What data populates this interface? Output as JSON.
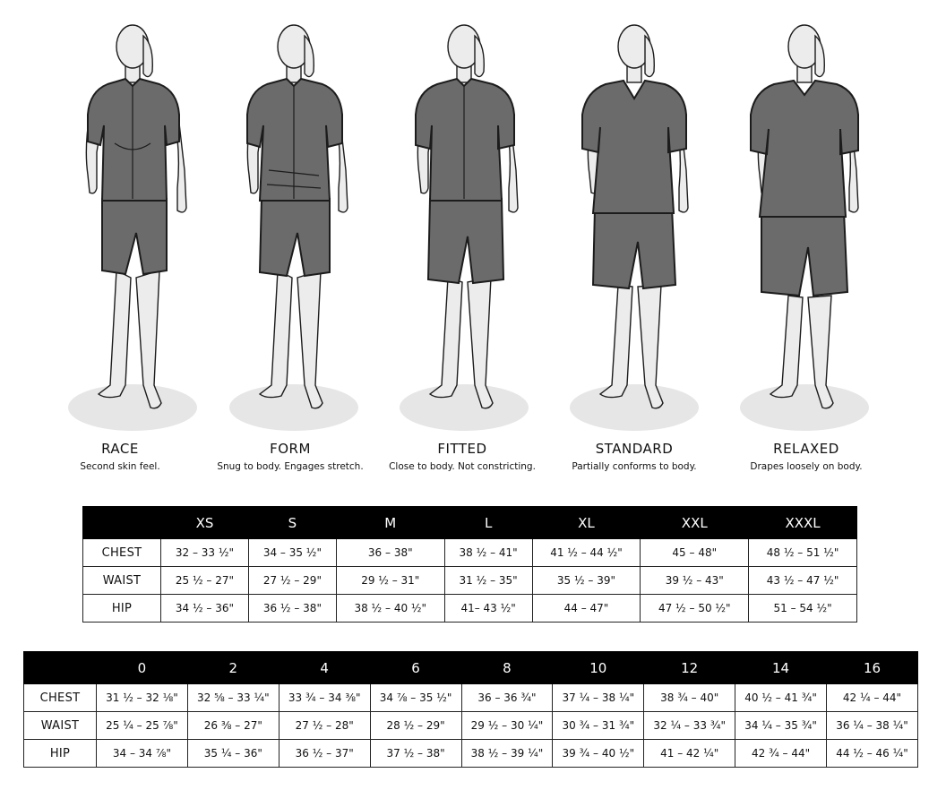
{
  "fits": [
    {
      "title": "RACE",
      "desc": "Second skin feel."
    },
    {
      "title": "FORM",
      "desc": "Snug to body. Engages stretch."
    },
    {
      "title": "FITTED",
      "desc": "Close to body. Not constricting."
    },
    {
      "title": "STANDARD",
      "desc": "Partially conforms to body."
    },
    {
      "title": "RELAXED",
      "desc": "Drapes loosely on body."
    }
  ],
  "colors": {
    "garment": "#6b6b6b",
    "body": "#ececec",
    "outline": "#1c1c1c",
    "shadow": "#e6e6e6",
    "header_bg": "#000000"
  },
  "alpha_table": {
    "headers": [
      "",
      "XS",
      "S",
      "M",
      "L",
      "XL",
      "XXL",
      "XXXL"
    ],
    "rows": [
      {
        "label": "CHEST",
        "values": [
          "32 – 33 ½\"",
          "34 – 35 ½\"",
          "36 – 38\"",
          "38 ½ – 41\"",
          "41 ½ – 44 ½\"",
          "45 – 48\"",
          "48 ½ – 51 ½\""
        ]
      },
      {
        "label": "WAIST",
        "values": [
          "25 ½ – 27\"",
          "27 ½ – 29\"",
          "29 ½ – 31\"",
          "31 ½ – 35\"",
          "35 ½ – 39\"",
          "39 ½ – 43\"",
          "43 ½ – 47 ½\""
        ]
      },
      {
        "label": "HIP",
        "values": [
          "34 ½ – 36\"",
          "36 ½ – 38\"",
          "38 ½ – 40 ½\"",
          "41– 43 ½\"",
          "44 – 47\"",
          "47 ½ – 50 ½\"",
          "51 – 54 ½\""
        ]
      }
    ]
  },
  "numeric_table": {
    "headers": [
      "",
      "0",
      "2",
      "4",
      "6",
      "8",
      "10",
      "12",
      "14",
      "16"
    ],
    "rows": [
      {
        "label": "CHEST",
        "values": [
          "31 ½ – 32 ⅛\"",
          "32 ⅝ – 33 ¼\"",
          "33 ¾ – 34 ⅜\"",
          "34 ⅞ – 35 ½\"",
          "36 – 36 ¾\"",
          "37 ¼ – 38 ¼\"",
          "38 ¾ – 40\"",
          "40 ½ – 41 ¾\"",
          "42 ¼ – 44\""
        ]
      },
      {
        "label": "WAIST",
        "values": [
          "25 ¼ – 25 ⅞\"",
          "26 ⅜ – 27\"",
          "27 ½ – 28\"",
          "28 ½ – 29\"",
          "29 ½ – 30 ¼\"",
          "30 ¾ – 31 ¾\"",
          "32 ¼ – 33 ¾\"",
          "34 ¼ – 35 ¾\"",
          "36 ¼ – 38 ¼\""
        ]
      },
      {
        "label": "HIP",
        "values": [
          "34 – 34 ⅞\"",
          "35 ¼ – 36\"",
          "36 ½ – 37\"",
          "37 ½ – 38\"",
          "38 ½ – 39 ¼\"",
          "39 ¾ – 40 ½\"",
          "41 – 42 ¼\"",
          "42 ¾ – 44\"",
          "44 ½ – 46 ¼\""
        ]
      }
    ]
  }
}
